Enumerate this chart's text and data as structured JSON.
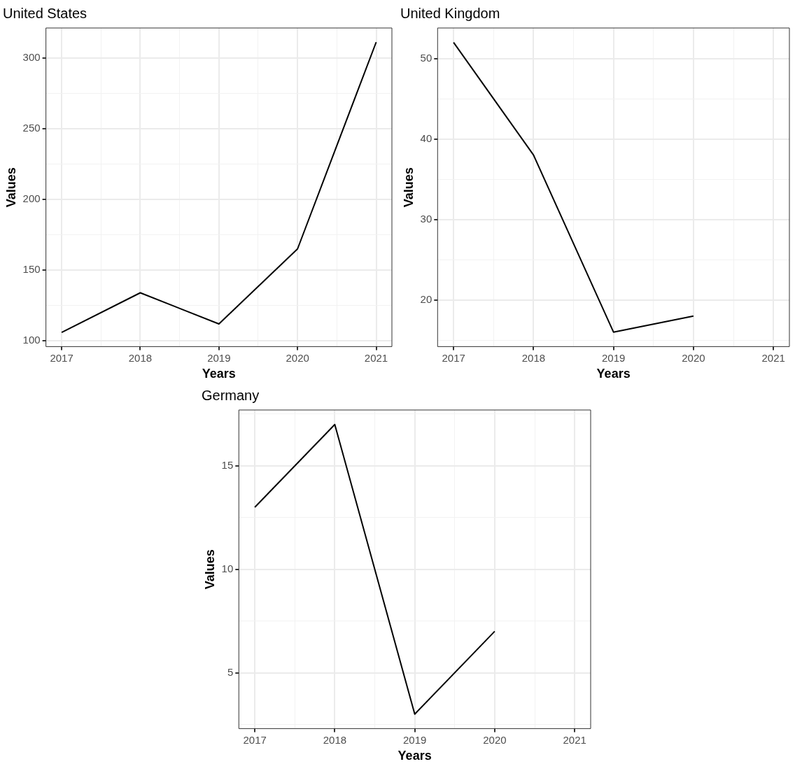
{
  "chart_data": [
    {
      "type": "line",
      "title": "United States",
      "xlabel": "Years",
      "ylabel": "Values",
      "x": [
        2017,
        2018,
        2019,
        2020,
        2021
      ],
      "values": [
        106,
        134,
        112,
        165,
        311
      ],
      "color": "#000000",
      "xlim": [
        2016.8,
        2021.2
      ],
      "xticks": [
        2017,
        {
          "value": 2017.5,
          "label": null
        },
        2018,
        {
          "value": 2018.5,
          "label": null
        },
        2019,
        {
          "value": 2019.5,
          "label": null
        },
        2020,
        {
          "value": 2020.5,
          "label": null
        },
        2021
      ],
      "ylim": [
        96,
        321
      ],
      "yticks": [
        100,
        {
          "value": 125,
          "label": null
        },
        150,
        {
          "value": 175,
          "label": null
        },
        200,
        {
          "value": 225,
          "label": null
        },
        250,
        {
          "value": 275,
          "label": null
        },
        300
      ],
      "grid": true,
      "legend": false,
      "marker": "none",
      "line_style": "solid"
    },
    {
      "type": "line",
      "title": "United Kingdom",
      "xlabel": "Years",
      "ylabel": "Values",
      "x": [
        2017,
        2018,
        2019,
        2020
      ],
      "values": [
        52,
        38,
        16,
        18
      ],
      "color": "#000000",
      "xlim": [
        2016.8,
        2021.2
      ],
      "xticks": [
        2017,
        {
          "value": 2017.5,
          "label": null
        },
        2018,
        {
          "value": 2018.5,
          "label": null
        },
        2019,
        {
          "value": 2019.5,
          "label": null
        },
        2020,
        {
          "value": 2020.5,
          "label": null
        },
        2021
      ],
      "ylim": [
        14.2,
        53.8
      ],
      "yticks": [
        {
          "value": 15,
          "label": null
        },
        20,
        {
          "value": 25,
          "label": null
        },
        30,
        {
          "value": 35,
          "label": null
        },
        40,
        {
          "value": 45,
          "label": null
        },
        50
      ],
      "grid": true,
      "legend": false,
      "marker": "none",
      "line_style": "solid"
    },
    {
      "type": "line",
      "title": "Germany",
      "xlabel": "Years",
      "ylabel": "Values",
      "x": [
        2017,
        2018,
        2019,
        2020
      ],
      "values": [
        13,
        17,
        3,
        7
      ],
      "color": "#000000",
      "xlim": [
        2016.8,
        2021.2
      ],
      "xticks": [
        2017,
        {
          "value": 2017.5,
          "label": null
        },
        2018,
        {
          "value": 2018.5,
          "label": null
        },
        2019,
        {
          "value": 2019.5,
          "label": null
        },
        2020,
        {
          "value": 2020.5,
          "label": null
        },
        2021
      ],
      "ylim": [
        2.3,
        17.7
      ],
      "yticks": [
        {
          "value": 2.5,
          "label": null
        },
        5,
        {
          "value": 7.5,
          "label": null
        },
        10,
        {
          "value": 12.5,
          "label": null
        },
        15,
        {
          "value": 17.5,
          "label": null
        }
      ],
      "grid": true,
      "legend": false,
      "marker": "none",
      "line_style": "solid"
    }
  ]
}
